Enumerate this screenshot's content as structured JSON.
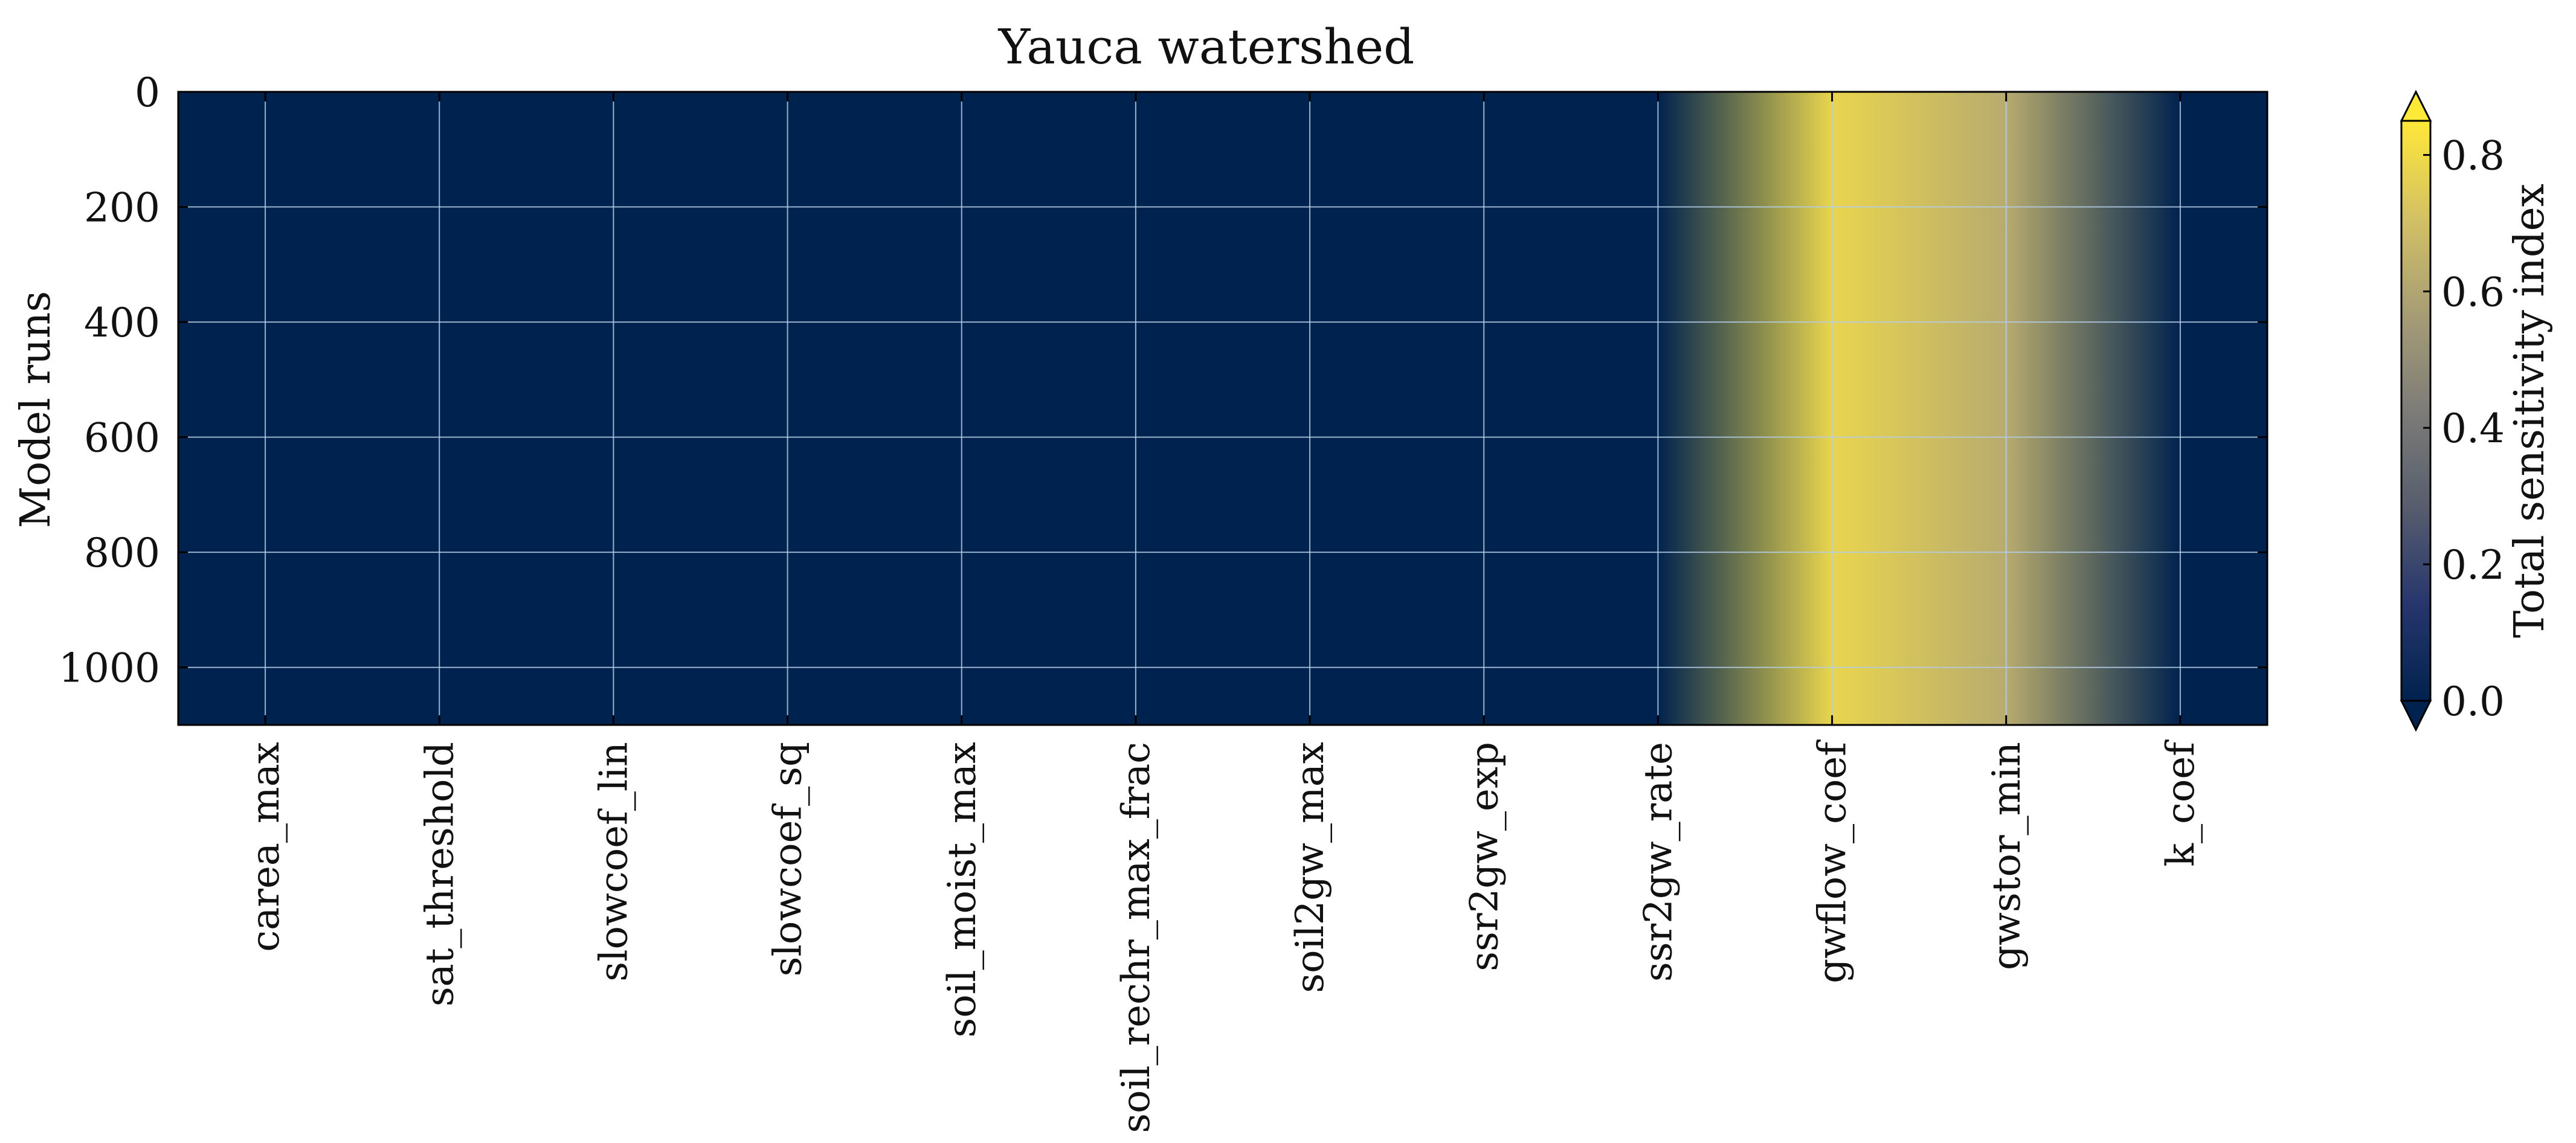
{
  "chart_data": {
    "type": "heatmap",
    "title": "Yauca watershed",
    "ylabel": "Model runs",
    "xlabel": "",
    "x_categories": [
      "carea_max",
      "sat_threshold",
      "slowcoef_lin",
      "slowcoef_sq",
      "soil_moist_max",
      "soil_rechr_max_frac",
      "soil2gw_max",
      "ssr2gw_exp",
      "ssr2gw_rate",
      "gwflow_coef",
      "gwstor_min",
      "k_coef"
    ],
    "values": [
      0.0,
      0.0,
      0.0,
      0.0,
      0.0,
      0.0,
      0.0,
      0.0,
      0.0,
      0.78,
      0.62,
      0.0
    ],
    "yticks": [
      0,
      200,
      400,
      600,
      800,
      1000
    ],
    "ylim": [
      1100,
      0
    ],
    "grid": true,
    "grid_color": "#b3cde6",
    "colorbar": {
      "label": "Total sensitivity index",
      "ticks": [
        0.0,
        0.2,
        0.4,
        0.6,
        0.8
      ],
      "range": [
        0.0,
        0.85
      ],
      "extend": "both",
      "colors": [
        "#00224e",
        "#27366d",
        "#575d6d",
        "#7d7c78",
        "#a69d75",
        "#d3c164",
        "#fee838"
      ]
    }
  }
}
